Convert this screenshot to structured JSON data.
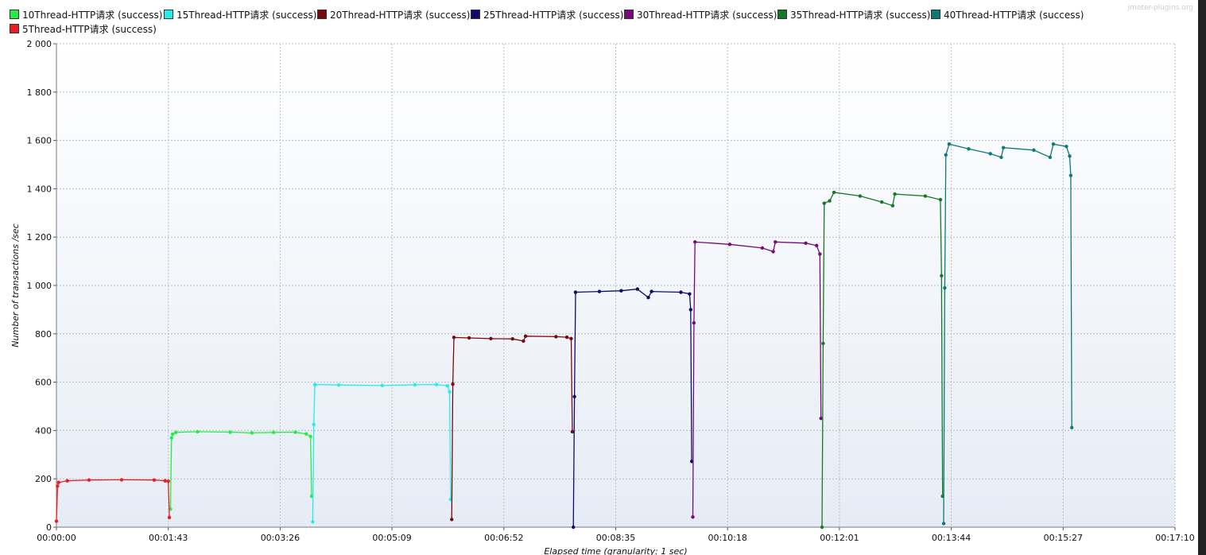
{
  "watermark": "jmeter-plugins.org",
  "colors": {
    "plot_bg_top": "#ffffff",
    "plot_bg_bottom": "#e6ecf5",
    "grid": "#b9bfc7"
  },
  "chart_data": {
    "type": "line",
    "title": "",
    "xlabel": "Elapsed time (granularity: 1 sec)",
    "ylabel": "Number of transactions /sec",
    "x_unit": "seconds",
    "xlim": [
      0,
      1030
    ],
    "ylim": [
      0,
      2000
    ],
    "y_ticks": [
      0,
      200,
      400,
      600,
      800,
      1000,
      1200,
      1400,
      1600,
      1800,
      2000
    ],
    "y_tick_labels": [
      "0",
      "200",
      "400",
      "600",
      "800",
      "1 000",
      "1 200",
      "1 400",
      "1 600",
      "1 800",
      "2 000"
    ],
    "x_ticks": [
      0,
      103,
      206,
      309,
      412,
      515,
      618,
      721,
      824,
      927,
      1030
    ],
    "x_tick_labels": [
      "00:00:00",
      "00:01:43",
      "00:03:26",
      "00:05:09",
      "00:06:52",
      "00:08:35",
      "00:10:18",
      "00:12:01",
      "00:13:44",
      "00:15:27",
      "00:17:10"
    ],
    "grid": true,
    "legend_position": "top",
    "series": [
      {
        "name": "10Thread-HTTP请求 (success)",
        "color": "#22ee44",
        "points": [
          [
            105,
            75
          ],
          [
            106,
            370
          ],
          [
            107,
            385
          ],
          [
            110,
            392
          ],
          [
            130,
            395
          ],
          [
            160,
            393
          ],
          [
            180,
            390
          ],
          [
            200,
            392
          ],
          [
            220,
            393
          ],
          [
            230,
            386
          ],
          [
            234,
            375
          ],
          [
            235,
            128
          ]
        ]
      },
      {
        "name": "15Thread-HTTP请求 (success)",
        "color": "#22eeee",
        "points": [
          [
            236,
            22
          ],
          [
            237,
            425
          ],
          [
            238,
            590
          ],
          [
            260,
            588
          ],
          [
            300,
            586
          ],
          [
            330,
            589
          ],
          [
            350,
            590
          ],
          [
            360,
            585
          ],
          [
            362,
            560
          ],
          [
            363,
            115
          ]
        ]
      },
      {
        "name": "20Thread-HTTP请求 (success)",
        "color": "#7a0a0a",
        "points": [
          [
            364,
            32
          ],
          [
            365,
            592
          ],
          [
            366,
            785
          ],
          [
            380,
            783
          ],
          [
            400,
            780
          ],
          [
            420,
            779
          ],
          [
            430,
            770
          ],
          [
            432,
            790
          ],
          [
            460,
            788
          ],
          [
            470,
            786
          ],
          [
            474,
            780
          ],
          [
            475,
            395
          ]
        ]
      },
      {
        "name": "25Thread-HTTP请求 (success)",
        "color": "#0c0c6e",
        "points": [
          [
            476,
            0
          ],
          [
            477,
            540
          ],
          [
            478,
            972
          ],
          [
            500,
            975
          ],
          [
            520,
            978
          ],
          [
            535,
            985
          ],
          [
            545,
            950
          ],
          [
            548,
            975
          ],
          [
            575,
            972
          ],
          [
            583,
            965
          ],
          [
            584,
            900
          ],
          [
            585,
            272
          ]
        ]
      },
      {
        "name": "30Thread-HTTP请求 (success)",
        "color": "#7a0a7a",
        "points": [
          [
            586,
            42
          ],
          [
            587,
            845
          ],
          [
            588,
            1180
          ],
          [
            620,
            1170
          ],
          [
            650,
            1155
          ],
          [
            660,
            1140
          ],
          [
            662,
            1180
          ],
          [
            690,
            1175
          ],
          [
            700,
            1165
          ],
          [
            703,
            1130
          ],
          [
            704,
            450
          ]
        ]
      },
      {
        "name": "35Thread-HTTP请求 (success)",
        "color": "#127a22",
        "points": [
          [
            705,
            0
          ],
          [
            706,
            760
          ],
          [
            707,
            1340
          ],
          [
            712,
            1350
          ],
          [
            716,
            1385
          ],
          [
            740,
            1370
          ],
          [
            760,
            1345
          ],
          [
            770,
            1330
          ],
          [
            772,
            1378
          ],
          [
            800,
            1370
          ],
          [
            814,
            1355
          ],
          [
            815,
            1040
          ],
          [
            816,
            128
          ]
        ]
      },
      {
        "name": "40Thread-HTTP请求 (success)",
        "color": "#0c7a7a",
        "points": [
          [
            817,
            15
          ],
          [
            818,
            990
          ],
          [
            819,
            1540
          ],
          [
            822,
            1585
          ],
          [
            840,
            1565
          ],
          [
            860,
            1545
          ],
          [
            870,
            1530
          ],
          [
            872,
            1570
          ],
          [
            900,
            1560
          ],
          [
            915,
            1530
          ],
          [
            918,
            1585
          ],
          [
            930,
            1575
          ],
          [
            933,
            1535
          ],
          [
            934,
            1455
          ],
          [
            935,
            412
          ]
        ]
      },
      {
        "name": "5Thread-HTTP请求 (success)",
        "color": "#ee1c24",
        "points": [
          [
            0,
            25
          ],
          [
            1,
            170
          ],
          [
            2,
            185
          ],
          [
            10,
            192
          ],
          [
            30,
            195
          ],
          [
            60,
            196
          ],
          [
            90,
            195
          ],
          [
            100,
            192
          ],
          [
            103,
            190
          ],
          [
            104,
            40
          ]
        ]
      }
    ]
  }
}
